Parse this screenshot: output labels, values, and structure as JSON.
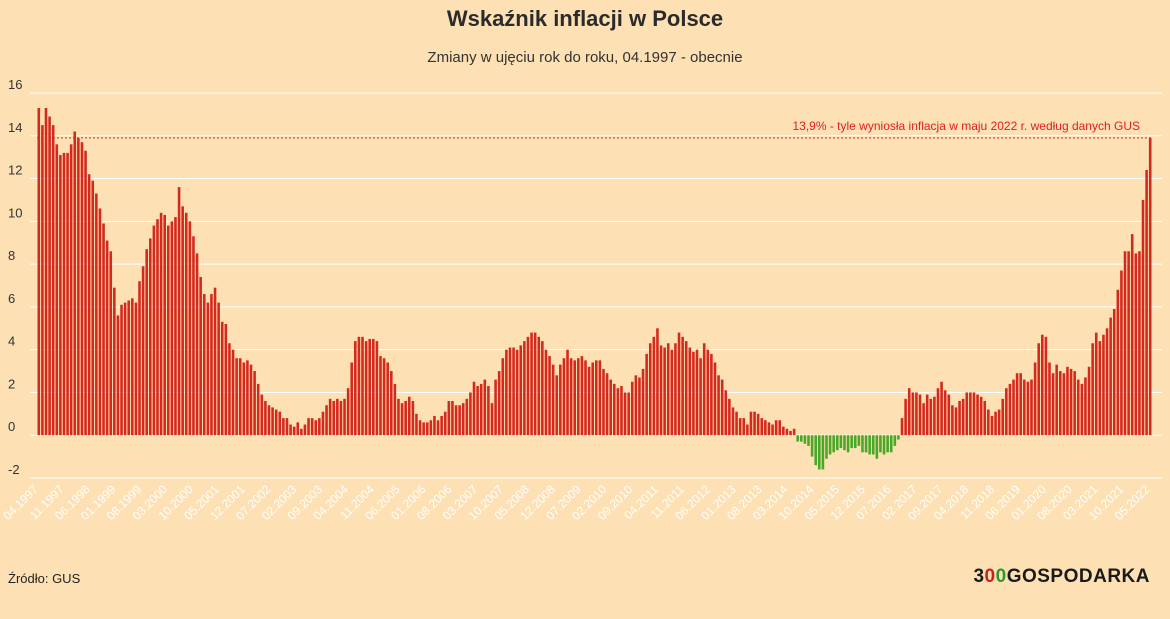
{
  "title": "Wskaźnik inflacji w Polsce",
  "subtitle": "Zmiany w ujęciu rok do roku, 04.1997 - obecnie",
  "source": "Źródło: GUS",
  "logo": {
    "prefix": "3",
    "o1": "0",
    "o2": "0",
    "suffix": "GOSPODARKA"
  },
  "colors": {
    "background": "#fde0b3",
    "positive": "#d42a1e",
    "negative": "#4aa829",
    "annotation": "#e02020",
    "grid": "#ffffff"
  },
  "chart_data": {
    "type": "bar",
    "start_period": "04.1997",
    "x_tick_labels": [
      "04.1997",
      "11.1997",
      "06.1998",
      "01.1999",
      "08.1999",
      "03.2000",
      "10.2000",
      "05.2001",
      "12.2001",
      "07.2002",
      "02.2003",
      "09.2003",
      "04.2004",
      "11.2004",
      "06.2005",
      "01.2006",
      "08.2006",
      "03.2007",
      "10.2007",
      "05.2008",
      "12.2008",
      "07.2009",
      "02.2010",
      "09.2010",
      "04.2011",
      "11.2011",
      "06.2012",
      "01.2013",
      "08.2013",
      "03.2014",
      "10.2014",
      "05.2015",
      "12.2015",
      "07.2016",
      "02.2017",
      "09.2017",
      "04.2018",
      "11.2018",
      "06.2019",
      "01.2020",
      "08.2020",
      "03.2021",
      "10.2021",
      "05.2022"
    ],
    "y_ticks": [
      -2,
      0,
      2,
      4,
      6,
      8,
      10,
      12,
      14,
      16
    ],
    "ylim": [
      -2,
      16
    ],
    "grid": true,
    "reference_line": {
      "value": 13.9,
      "label": "13,9% - tyle wyniosła inflacja w maju 2022 r. według danych GUS"
    },
    "values": [
      15.3,
      14.5,
      15.3,
      14.9,
      14.5,
      13.6,
      13.1,
      13.2,
      13.2,
      13.6,
      14.2,
      13.9,
      13.7,
      13.3,
      12.2,
      11.9,
      11.3,
      10.6,
      9.9,
      9.1,
      8.6,
      6.9,
      5.6,
      6.1,
      6.2,
      6.3,
      6.4,
      6.2,
      7.2,
      7.9,
      8.7,
      9.2,
      9.8,
      10.1,
      10.4,
      10.3,
      9.8,
      10.0,
      10.2,
      11.6,
      10.7,
      10.4,
      10.0,
      9.3,
      8.5,
      7.4,
      6.6,
      6.2,
      6.6,
      6.9,
      6.2,
      5.3,
      5.2,
      4.3,
      4.0,
      3.6,
      3.6,
      3.4,
      3.5,
      3.3,
      3.0,
      2.4,
      1.9,
      1.6,
      1.4,
      1.3,
      1.2,
      1.1,
      0.8,
      0.8,
      0.5,
      0.4,
      0.6,
      0.3,
      0.5,
      0.8,
      0.8,
      0.7,
      0.8,
      1.1,
      1.4,
      1.7,
      1.6,
      1.7,
      1.6,
      1.7,
      2.2,
      3.4,
      4.4,
      4.6,
      4.6,
      4.4,
      4.5,
      4.5,
      4.4,
      3.7,
      3.6,
      3.4,
      3.0,
      2.4,
      1.7,
      1.5,
      1.6,
      1.8,
      1.6,
      1.0,
      0.7,
      0.6,
      0.6,
      0.7,
      0.9,
      0.7,
      0.9,
      1.1,
      1.6,
      1.6,
      1.4,
      1.4,
      1.5,
      1.7,
      2.0,
      2.5,
      2.3,
      2.4,
      2.6,
      2.3,
      1.5,
      2.6,
      3.0,
      3.6,
      4.0,
      4.1,
      4.1,
      4.0,
      4.2,
      4.4,
      4.6,
      4.8,
      4.8,
      4.6,
      4.4,
      4.0,
      3.7,
      3.3,
      2.8,
      3.3,
      3.6,
      4.0,
      3.6,
      3.5,
      3.6,
      3.7,
      3.5,
      3.2,
      3.4,
      3.5,
      3.5,
      3.1,
      2.9,
      2.6,
      2.4,
      2.2,
      2.3,
      2.0,
      2.0,
      2.5,
      2.8,
      2.7,
      3.1,
      3.8,
      4.3,
      4.6,
      5.0,
      4.2,
      4.1,
      4.3,
      4.0,
      4.3,
      4.8,
      4.6,
      4.4,
      4.1,
      3.9,
      4.0,
      3.6,
      4.3,
      4.0,
      3.8,
      3.4,
      2.8,
      2.6,
      2.1,
      1.7,
      1.3,
      1.1,
      0.8,
      0.8,
      0.5,
      1.1,
      1.1,
      1.0,
      0.8,
      0.7,
      0.6,
      0.5,
      0.7,
      0.7,
      0.4,
      0.3,
      0.2,
      0.3,
      -0.3,
      -0.3,
      -0.4,
      -0.5,
      -1.0,
      -1.4,
      -1.6,
      -1.6,
      -1.1,
      -0.9,
      -0.8,
      -0.7,
      -0.6,
      -0.7,
      -0.8,
      -0.6,
      -0.6,
      -0.5,
      -0.8,
      -0.8,
      -0.9,
      -0.9,
      -1.1,
      -0.8,
      -0.9,
      -0.8,
      -0.8,
      -0.5,
      -0.2,
      0.8,
      1.7,
      2.2,
      2.0,
      2.0,
      1.9,
      1.5,
      1.9,
      1.7,
      1.8,
      2.2,
      2.5,
      2.1,
      1.9,
      1.4,
      1.3,
      1.6,
      1.7,
      2.0,
      2.0,
      2.0,
      1.9,
      1.8,
      1.6,
      1.2,
      0.9,
      1.1,
      1.2,
      1.7,
      2.2,
      2.4,
      2.6,
      2.9,
      2.9,
      2.6,
      2.5,
      2.6,
      3.4,
      4.3,
      4.7,
      4.6,
      3.4,
      2.9,
      3.3,
      3.0,
      2.9,
      3.2,
      3.1,
      3.0,
      2.6,
      2.4,
      2.7,
      3.2,
      4.3,
      4.8,
      4.4,
      4.7,
      5.0,
      5.5,
      5.9,
      6.8,
      7.7,
      8.6,
      8.6,
      9.4,
      8.5,
      8.6,
      11.0,
      12.4,
      13.9
    ]
  }
}
